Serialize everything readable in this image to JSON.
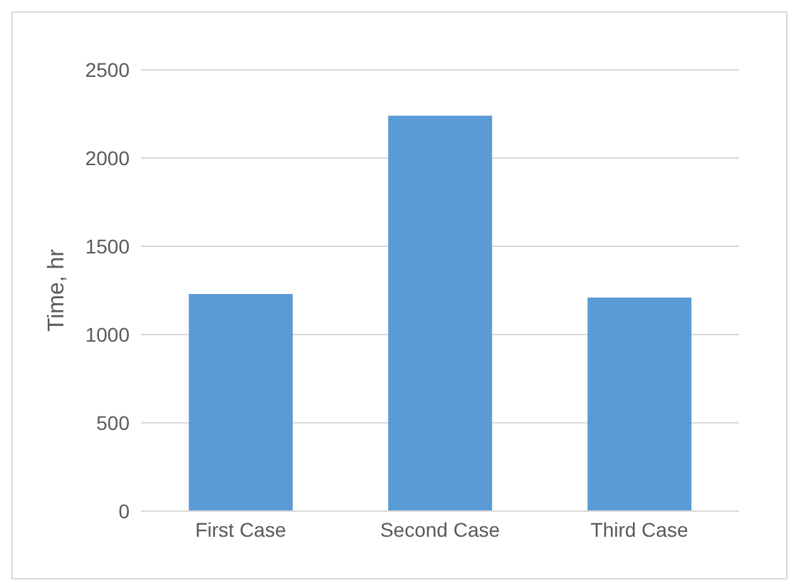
{
  "chart_data": {
    "type": "bar",
    "ylabel": "Time, hr",
    "categories": [
      "First Case",
      "Second Case",
      "Third Case"
    ],
    "values": [
      1230,
      2240,
      1210
    ],
    "color": "#5b9bd5",
    "ylim": [
      0,
      2500
    ],
    "yticks": [
      0,
      500,
      1000,
      1500,
      2000,
      2500
    ],
    "grid": "y"
  }
}
